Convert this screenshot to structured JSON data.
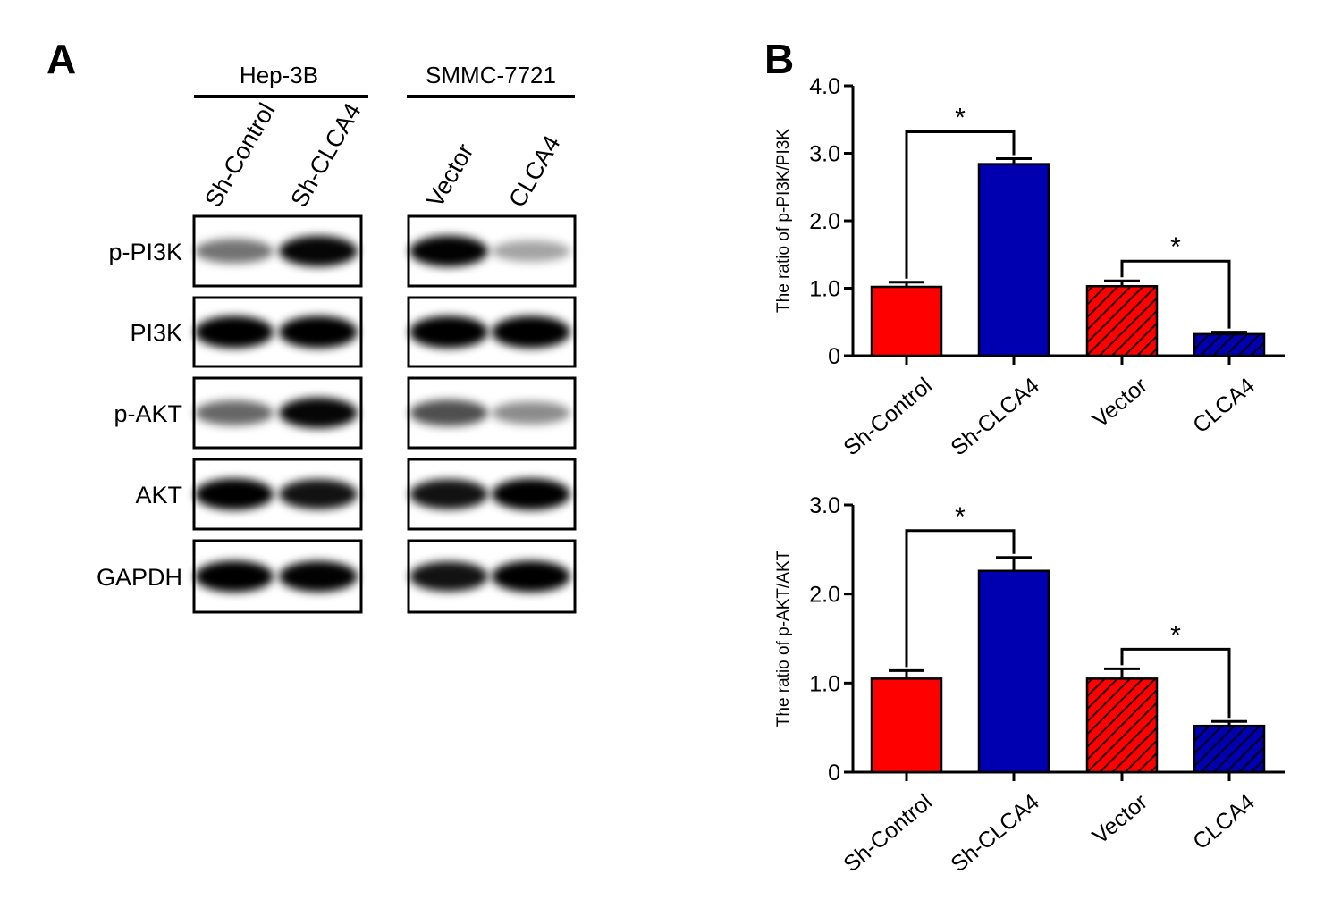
{
  "panel_a": {
    "letter": "A",
    "groups": [
      {
        "title": "Hep-3B",
        "lanes": [
          "Sh-Control",
          "Sh-CLCA4"
        ]
      },
      {
        "title": "SMMC-7721",
        "lanes": [
          "Vector",
          "CLCA4"
        ]
      }
    ],
    "proteins": [
      "p-PI3K",
      "PI3K",
      "p-AKT",
      "AKT",
      "GAPDH"
    ],
    "band_intensity": [
      [
        0.45,
        0.9,
        0.92,
        0.25
      ],
      [
        1.0,
        1.0,
        1.0,
        1.0
      ],
      [
        0.5,
        0.9,
        0.6,
        0.35
      ],
      [
        0.95,
        0.85,
        0.85,
        0.95
      ],
      [
        0.95,
        0.92,
        0.85,
        0.95
      ]
    ]
  },
  "panel_b": {
    "letter": "B"
  },
  "colors": {
    "red": "#ff0000",
    "blue": "#0000b0",
    "black": "#000000"
  },
  "chart_data": [
    {
      "type": "bar",
      "ylabel": "The ratio of p-PI3K/PI3K",
      "categories": [
        "Sh-Control",
        "Sh-CLCA4",
        "Vector",
        "CLCA4"
      ],
      "values": [
        1.02,
        2.84,
        1.03,
        0.32
      ],
      "errors": [
        0.07,
        0.08,
        0.08,
        0.03
      ],
      "hatched": [
        false,
        false,
        true,
        true
      ],
      "fill_colors": [
        "#ff0000",
        "#0000b0",
        "#ff0000",
        "#0000b0"
      ],
      "ylim": [
        0,
        4.0
      ],
      "yticks": [
        0,
        1.0,
        2.0,
        3.0,
        4.0
      ],
      "ytick_labels": [
        "0",
        "1.0",
        "2.0",
        "3.0",
        "4.0"
      ],
      "significance": [
        {
          "from": 0,
          "to": 1,
          "label": "*"
        },
        {
          "from": 2,
          "to": 3,
          "label": "*"
        }
      ]
    },
    {
      "type": "bar",
      "ylabel": "The ratio of p-AKT/AKT",
      "categories": [
        "Sh-Control",
        "Sh-CLCA4",
        "Vector",
        "CLCA4"
      ],
      "values": [
        1.05,
        2.26,
        1.05,
        0.52
      ],
      "errors": [
        0.09,
        0.15,
        0.11,
        0.05
      ],
      "hatched": [
        false,
        false,
        true,
        true
      ],
      "fill_colors": [
        "#ff0000",
        "#0000b0",
        "#ff0000",
        "#0000b0"
      ],
      "ylim": [
        0,
        3.0
      ],
      "yticks": [
        0,
        1.0,
        2.0,
        3.0
      ],
      "ytick_labels": [
        "0",
        "1.0",
        "2.0",
        "3.0"
      ],
      "significance": [
        {
          "from": 0,
          "to": 1,
          "label": "*"
        },
        {
          "from": 2,
          "to": 3,
          "label": "*"
        }
      ]
    }
  ]
}
